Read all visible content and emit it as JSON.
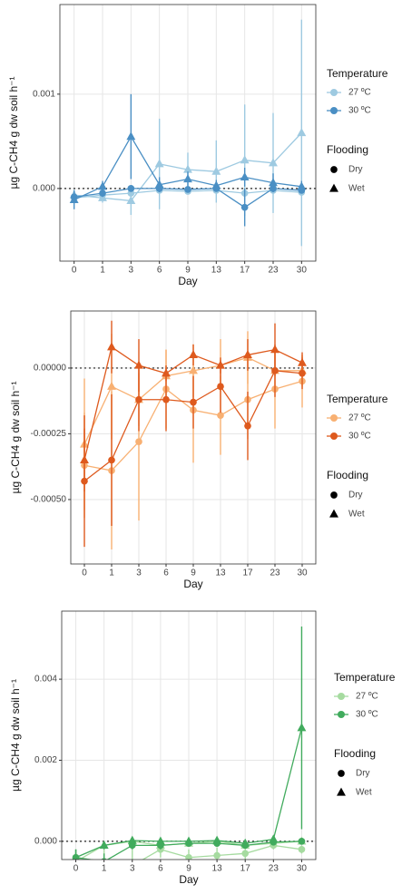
{
  "chart_data": [
    {
      "type": "line",
      "x_label": "Day",
      "y_label": "µg C-CH4 g dw soil h⁻¹",
      "categories": [
        "0",
        "1",
        "3",
        "6",
        "9",
        "13",
        "17",
        "23",
        "30"
      ],
      "ylim": [
        -0.00077,
        0.00195
      ],
      "yticks": [
        {
          "value": 0,
          "label": "0.000"
        },
        {
          "value": 0.001,
          "label": "0.001"
        }
      ],
      "grid": true,
      "hline": 0,
      "legend": {
        "color_title": "Temperature",
        "color_entries": [
          {
            "label": "27 ºC",
            "color": "#9ecae1"
          },
          {
            "label": "30 ºC",
            "color": "#4a8fc4"
          }
        ],
        "shape_title": "Flooding",
        "shape_entries": [
          {
            "label": "Dry",
            "marker": "circle"
          },
          {
            "label": "Wet",
            "marker": "triangle"
          }
        ]
      },
      "series": [
        {
          "color": "#9ecae1",
          "marker": "circle",
          "values": [
            -0.0001,
            -7e-05,
            -5e-05,
            -2e-05,
            -3e-05,
            -2e-05,
            -5e-05,
            -2e-05,
            -4e-05
          ],
          "errors": [
            5e-05,
            4e-05,
            4e-05,
            3e-05,
            3e-05,
            3e-05,
            6e-05,
            4e-05,
            4e-05
          ]
        },
        {
          "color": "#9ecae1",
          "marker": "triangle",
          "values": [
            -7e-05,
            -0.0001,
            -0.00013,
            0.00026,
            0.0002,
            0.00018,
            0.0003,
            0.00027,
            0.00059
          ],
          "errors": [
            6e-05,
            5e-05,
            0.00015,
            0.00048,
            0.00018,
            0.00033,
            0.00059,
            0.00053,
            0.0012
          ]
        },
        {
          "color": "#4a8fc4",
          "marker": "circle",
          "values": [
            -9e-05,
            -5e-05,
            0,
            0,
            -1e-05,
            0,
            -0.0002,
            0,
            -2e-05
          ],
          "errors": [
            6e-05,
            4e-05,
            3e-05,
            3e-05,
            3e-05,
            3e-05,
            0.0002,
            4e-05,
            3e-05
          ]
        },
        {
          "color": "#4a8fc4",
          "marker": "triangle",
          "values": [
            -0.00012,
            2e-05,
            0.00055,
            4e-05,
            0.0001,
            3e-05,
            0.00012,
            6e-05,
            2e-05
          ],
          "errors": [
            0.0001,
            6e-05,
            0.00045,
            8e-05,
            8e-05,
            6e-05,
            0.0001,
            0.0001,
            6e-05
          ]
        }
      ]
    },
    {
      "type": "line",
      "x_label": "Day",
      "y_label": "µg C-CH4 g dw soil h⁻¹",
      "categories": [
        "0",
        "1",
        "3",
        "6",
        "9",
        "13",
        "17",
        "23",
        "30"
      ],
      "ylim": [
        -0.000745,
        0.000217
      ],
      "yticks": [
        {
          "value": -0.0005,
          "label": "-0.00050"
        },
        {
          "value": -0.00025,
          "label": "-0.00025"
        },
        {
          "value": 0,
          "label": "0.00000"
        }
      ],
      "grid": true,
      "hline": 0,
      "legend": {
        "color_title": "Temperature",
        "color_entries": [
          {
            "label": "27 ºC",
            "color": "#f8b072"
          },
          {
            "label": "30 ºC",
            "color": "#de5a1e"
          }
        ],
        "shape_title": "Flooding",
        "shape_entries": [
          {
            "label": "Dry",
            "marker": "circle"
          },
          {
            "label": "Wet",
            "marker": "triangle"
          }
        ]
      },
      "series": [
        {
          "color": "#f8b072",
          "marker": "circle",
          "values": [
            -0.00037,
            -0.00039,
            -0.00028,
            -8e-05,
            -0.00016,
            -0.00018,
            -0.00012,
            -8e-05,
            -5e-05
          ],
          "errors": [
            0.0002,
            0.0003,
            0.0003,
            0.00015,
            0.0002,
            0.00015,
            0.00015,
            0.00015,
            0.0001
          ]
        },
        {
          "color": "#f8b072",
          "marker": "triangle",
          "values": [
            -0.00029,
            -7e-05,
            -0.00012,
            -3e-05,
            -1e-05,
            1e-05,
            4e-05,
            -1e-05,
            -1e-05
          ],
          "errors": [
            0.00025,
            0.0002,
            0.0001,
            0.0001,
            0.0001,
            0.0001,
            0.0001,
            8e-05,
            6e-05
          ]
        },
        {
          "color": "#de5a1e",
          "marker": "circle",
          "values": [
            -0.00043,
            -0.00035,
            -0.00012,
            -0.00012,
            -0.00013,
            -7e-05,
            -0.00022,
            -1e-05,
            -2e-05
          ],
          "errors": [
            0.00025,
            0.00025,
            0.00012,
            0.00012,
            0.0001,
            0.0001,
            0.00013,
            0.0001,
            6e-05
          ]
        },
        {
          "color": "#de5a1e",
          "marker": "triangle",
          "values": [
            -0.00035,
            8e-05,
            1e-05,
            -2e-05,
            5e-05,
            1e-05,
            5e-05,
            7e-05,
            2e-05
          ],
          "errors": [
            0.00012,
            0.0001,
            0.0001,
            3e-05,
            4e-05,
            3e-05,
            6e-05,
            0.0001,
            4e-05
          ]
        }
      ]
    },
    {
      "type": "line",
      "x_label": "Day",
      "y_label": "µg C-CH4 g dw soil h⁻¹",
      "categories": [
        "0",
        "1",
        "3",
        "6",
        "9",
        "13",
        "17",
        "23",
        "30"
      ],
      "ylim": [
        -0.00045,
        0.00568
      ],
      "yticks": [
        {
          "value": 0,
          "label": "0.000"
        },
        {
          "value": 0.002,
          "label": "0.002"
        },
        {
          "value": 0.004,
          "label": "0.004"
        }
      ],
      "grid": true,
      "hline": 0,
      "legend": {
        "color_title": "Temperature",
        "color_entries": [
          {
            "label": "27 ºC",
            "color": "#a6dba0"
          },
          {
            "label": "30 ºC",
            "color": "#41ab5d"
          }
        ],
        "shape_title": "Flooding",
        "shape_entries": [
          {
            "label": "Dry",
            "marker": "circle"
          },
          {
            "label": "Wet",
            "marker": "triangle"
          }
        ]
      },
      "series": [
        {
          "color": "#a6dba0",
          "marker": "circle",
          "values": [
            -0.0004,
            -0.0005,
            -0.0006,
            -0.0002,
            -0.0004,
            -0.00035,
            -0.0003,
            -0.0001,
            -0.0002
          ],
          "errors": [
            0.0002,
            0.0004,
            0.0004,
            0.0002,
            0.0002,
            0.0002,
            0.0002,
            0.0001,
            0.0001
          ]
        },
        {
          "color": "#a6dba0",
          "marker": "triangle",
          "values": [
            -0.0005,
            -0.0001,
            0,
            -0.0001,
            -5e-05,
            0,
            -0.0001,
            -5e-05,
            0
          ],
          "errors": [
            0.0002,
            0.0001,
            5e-05,
            5e-05,
            5e-05,
            5e-05,
            5e-05,
            5e-05,
            5e-05
          ]
        },
        {
          "color": "#41ab5d",
          "marker": "circle",
          "values": [
            -0.0004,
            -0.0005,
            -0.0001,
            -0.0001,
            -5e-05,
            -5e-05,
            -0.0001,
            -2e-05,
            0
          ],
          "errors": [
            0.0002,
            0.0002,
            0.0001,
            0.0001,
            5e-05,
            5e-05,
            5e-05,
            5e-05,
            5e-05
          ]
        },
        {
          "color": "#41ab5d",
          "marker": "triangle",
          "values": [
            -0.0004,
            -0.0001,
            2e-05,
            0,
            0,
            2e-05,
            -5e-05,
            5e-05,
            0.0028
          ],
          "errors": [
            0.0002,
            0.0001,
            5e-05,
            5e-05,
            5e-05,
            5e-05,
            5e-05,
            5e-05,
            0.0025
          ]
        }
      ]
    }
  ]
}
